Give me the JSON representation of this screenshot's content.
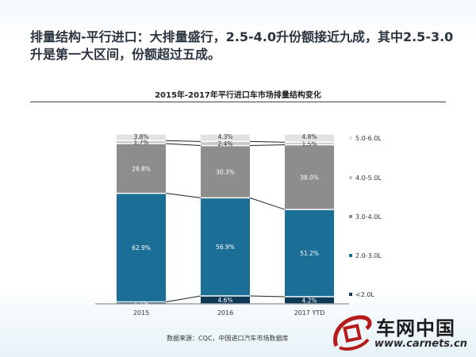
{
  "headline": "排量结构-平行进口：大排量盛行，2.5-4.0升份额接近九成，其中2.5-3.0升是第一大区间，份额超过五成。",
  "source": "数据来源：CQC，中国进口汽车市场数据库",
  "logo": {
    "name": "车网中国",
    "url": "www.carnets.cn"
  },
  "colors": {
    "lt2": "#0f3a57",
    "l2_3": "#1b6f96",
    "l3_4": "#8d8d8d",
    "l4_5": "#c7c7c7",
    "l5_6": "#e2e2e2"
  },
  "chart_data": {
    "type": "bar",
    "stacked": true,
    "title": "2015年-2017年平行进口车市场排量结构变化",
    "categories": [
      "2015",
      "2016",
      "2017 YTD"
    ],
    "ylim": [
      0,
      100
    ],
    "legend_position": "right",
    "series": [
      {
        "name": "<2.0L",
        "values": [
          1.1,
          4.6,
          4.2
        ],
        "labels": [
          "1.1%",
          "4.6%",
          "4.2%"
        ]
      },
      {
        "name": "2.0-3.0L",
        "values": [
          62.9,
          56.9,
          51.2
        ],
        "labels": [
          "62.9%",
          "56.9%",
          "51.2%"
        ]
      },
      {
        "name": "3.0-4.0L",
        "values": [
          28.8,
          30.3,
          38.0
        ],
        "labels": [
          "28.8%",
          "30.3%",
          "38.0%"
        ]
      },
      {
        "name": "4.0-5.0L",
        "values": [
          1.7,
          2.4,
          1.5
        ],
        "labels": [
          "1.7%",
          "2.4%",
          "1.5%"
        ]
      },
      {
        "name": "5.0-6.0L",
        "values": [
          3.8,
          4.3,
          4.8
        ],
        "labels": [
          "3.8%",
          "4.3%",
          "4.8%"
        ]
      }
    ]
  }
}
